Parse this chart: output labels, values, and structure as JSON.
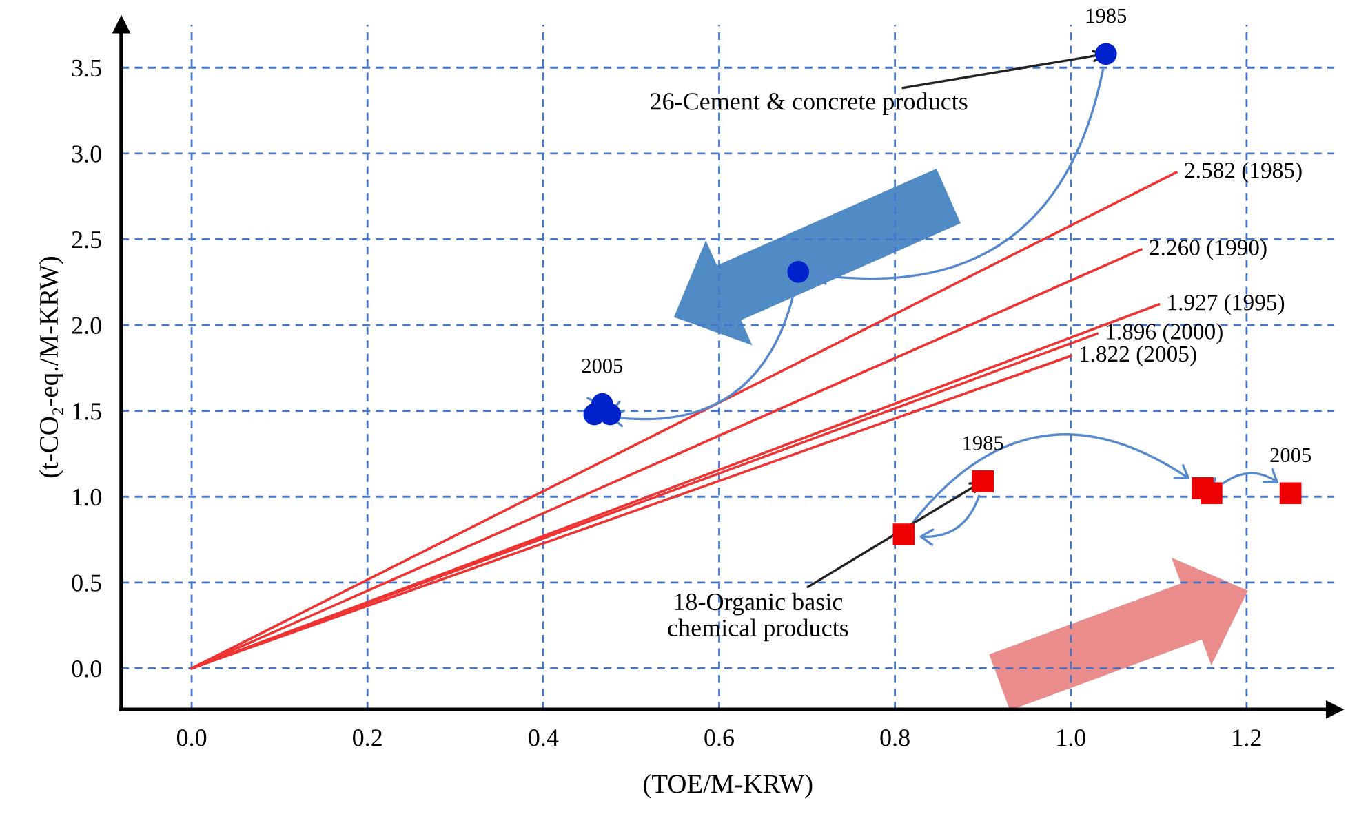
{
  "chart_data": {
    "type": "scatter",
    "xlabel": "(TOE/M-KRW)",
    "ylabel": "(t-CO₂-eq./M-KRW)",
    "xlim": [
      -0.08,
      1.3
    ],
    "ylim": [
      -0.24,
      3.75
    ],
    "xticks": [
      {
        "value": 0,
        "label": "0.0"
      },
      0.2,
      0.4,
      0.6,
      0.8,
      {
        "value": 1,
        "label": "1.0"
      },
      1.2
    ],
    "yticks": [
      {
        "value": 0,
        "label": "0.0"
      },
      0.5,
      {
        "value": 1,
        "label": "1.0"
      },
      1.5,
      {
        "value": 2,
        "label": "2.0"
      },
      2.5,
      {
        "value": 3,
        "label": "3.0"
      },
      3.5
    ],
    "grid": true,
    "series": [
      {
        "type": "scatter",
        "marker": "circle",
        "color": "#0022cc",
        "x": [
          1.04,
          0.69,
          0.458,
          0.467,
          0.476
        ],
        "values": [
          3.58,
          2.31,
          1.48,
          1.54,
          1.48
        ]
      },
      {
        "type": "scatter",
        "marker": "square",
        "color": "#ee0000",
        "x": [
          0.9,
          0.81,
          1.15,
          1.16,
          1.25
        ],
        "values": [
          1.09,
          0.78,
          1.05,
          1.02,
          1.02
        ]
      },
      {
        "type": "line",
        "name": "2.582 (1985)",
        "color": "#ee3333",
        "x": [
          0.0,
          1.12
        ],
        "values": [
          0.0,
          2.89
        ]
      },
      {
        "type": "line",
        "name": "2.260 (1990)",
        "color": "#ee3333",
        "x": [
          0.0,
          1.08
        ],
        "values": [
          0.0,
          2.44
        ]
      },
      {
        "type": "line",
        "name": "1.927 (1995)",
        "color": "#ee3333",
        "x": [
          0.0,
          1.1
        ],
        "values": [
          0.0,
          2.12
        ]
      },
      {
        "type": "line",
        "name": "1.896 (2000)",
        "color": "#ee3333",
        "x": [
          0.0,
          1.03
        ],
        "values": [
          0.0,
          1.95
        ]
      },
      {
        "type": "line",
        "name": "1.822 (2005)",
        "color": "#ee3333",
        "x": [
          0.0,
          1.0
        ],
        "values": [
          0.0,
          1.82
        ]
      }
    ],
    "annotations": [
      {
        "text": "1985",
        "x": 1.04,
        "y": 3.58
      },
      {
        "text": "2005",
        "x": 0.467,
        "y": 1.54
      },
      {
        "text": "1985",
        "x": 0.9,
        "y": 1.09
      },
      {
        "text": "2005",
        "x": 1.25,
        "y": 1.02
      },
      {
        "text": "26-Cement & concrete products",
        "x": 1.04,
        "y": 3.58
      },
      {
        "text": "18-Organic basic\nchemical products",
        "x": 0.9,
        "y": 1.09
      }
    ]
  }
}
